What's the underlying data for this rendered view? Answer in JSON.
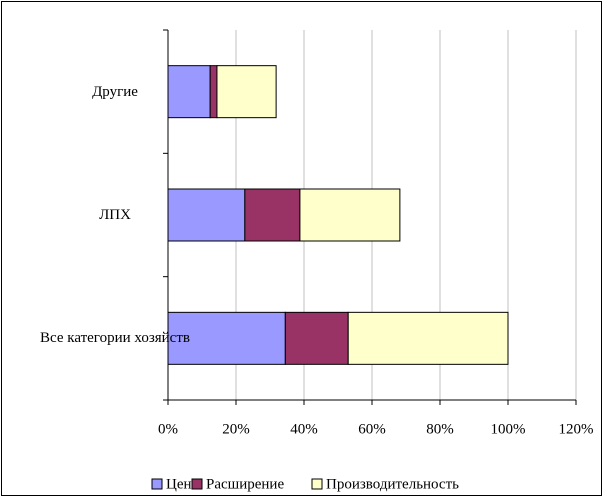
{
  "chart_data": {
    "type": "hbar_stacked",
    "categories": [
      "Все категории хозяйств",
      "ЛПХ",
      "Другие"
    ],
    "series": [
      {
        "name": "Цены",
        "color": "#9999ff",
        "values": [
          34.5,
          22.6,
          12.4
        ]
      },
      {
        "name": "Расширение",
        "color": "#993366",
        "values": [
          18.5,
          16.2,
          2
        ]
      },
      {
        "name": "Производительность",
        "color": "#ffffcc",
        "values": [
          47,
          29.4,
          17.4
        ]
      }
    ],
    "xlim": [
      0,
      120
    ],
    "xticks": [
      {
        "value": 0,
        "label": "0%"
      },
      {
        "value": 20,
        "label": "20%"
      },
      {
        "value": 40,
        "label": "40%"
      },
      {
        "value": 60,
        "label": "60%"
      },
      {
        "value": 80,
        "label": "80%"
      },
      {
        "value": 100,
        "label": "100%"
      },
      {
        "value": 120,
        "label": "120%"
      }
    ],
    "grid": true,
    "legend": "bottom"
  }
}
